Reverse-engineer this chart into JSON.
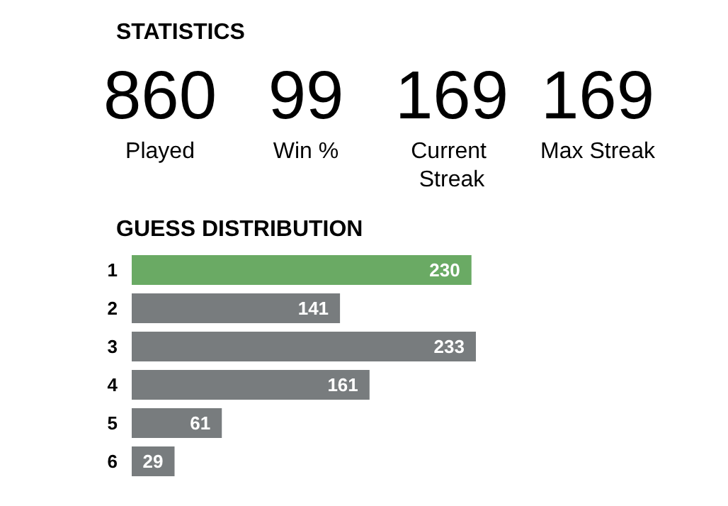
{
  "chart_data": [
    {
      "type": "other",
      "title": "STATISTICS",
      "categories": [
        "Played",
        "Win %",
        "Current Streak",
        "Max Streak"
      ],
      "values": [
        860,
        99,
        169,
        169
      ],
      "data_labels": true
    },
    {
      "type": "bar",
      "orientation": "horizontal",
      "title": "GUESS DISTRIBUTION",
      "categories": [
        "1",
        "2",
        "3",
        "4",
        "5",
        "6"
      ],
      "values": [
        230,
        141,
        233,
        161,
        61,
        29
      ],
      "colors": [
        "#6aaa64",
        "#787c7e",
        "#787c7e",
        "#787c7e",
        "#787c7e",
        "#787c7e"
      ],
      "data_labels": true
    }
  ]
}
